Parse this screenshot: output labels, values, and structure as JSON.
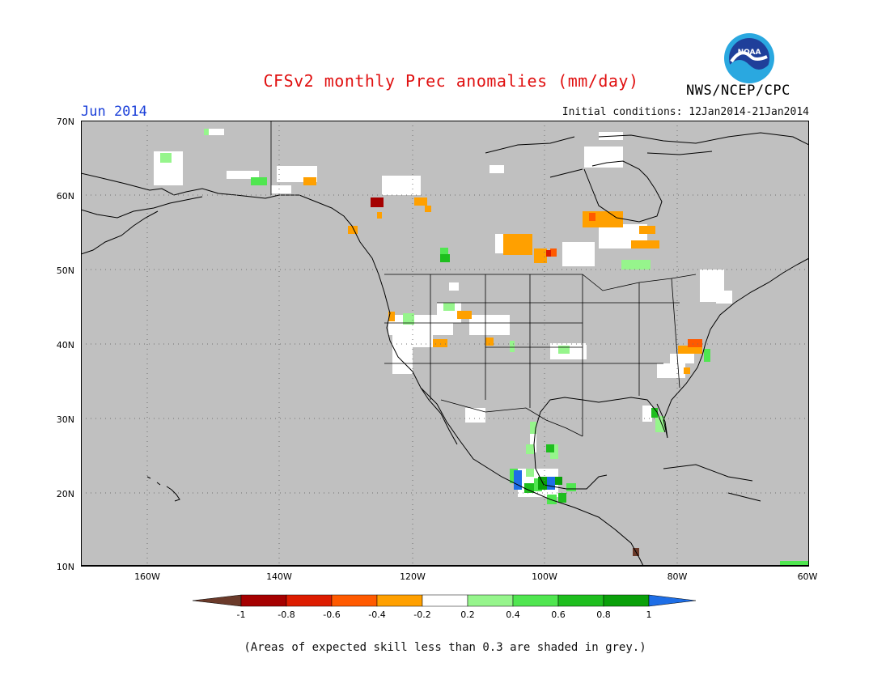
{
  "header": {
    "title": "CFSv2 monthly Prec anomalies (mm/day)",
    "period": "Jun 2014",
    "initial_conditions": "Initial conditions: 12Jan2014-21Jan2014",
    "agency": "NWS/NCEP/CPC",
    "logo_text": "NOAA"
  },
  "map": {
    "lat_labels": [
      "70N",
      "60N",
      "50N",
      "40N",
      "30N",
      "20N",
      "10N"
    ],
    "lon_labels": [
      "160W",
      "140W",
      "120W",
      "100W",
      "80W",
      "60W"
    ],
    "background_color": "#c0c0c0",
    "grid": "dotted"
  },
  "colorbar": {
    "labels": [
      "-1",
      "-0.8",
      "-0.6",
      "-0.4",
      "-0.2",
      "0.2",
      "0.4",
      "0.6",
      "0.8",
      "1"
    ],
    "colors": [
      "#6b3a2a",
      "#a50000",
      "#dd1c00",
      "#ff5a00",
      "#ffa000",
      "#ffffff",
      "#96f58c",
      "#50e650",
      "#1ebe1e",
      "#0aa00a",
      "#1e6ee6"
    ]
  },
  "footnote": "(Areas of expected skill less than 0.3 are shaded in grey.)"
}
